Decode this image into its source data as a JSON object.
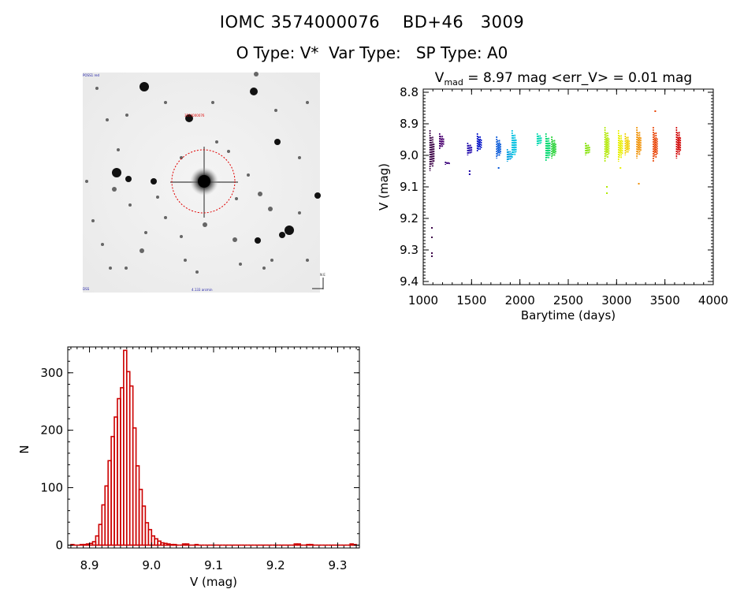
{
  "header": {
    "id_label": "IOMC",
    "iomc_id": "3574000076",
    "star_name": "BD+46   3009",
    "otype_label": "O Type:",
    "otype": "V*",
    "vartype_label": "Var Type:",
    "vartype": "",
    "sptype_label": "SP Type:",
    "sptype": "A0"
  },
  "image_panel": {
    "label_top_left": "POSS1 red",
    "label_target": "3574000076",
    "label_bottom_left": "DSS",
    "label_bottom_mid": "4.133 arcmin",
    "label_compass": "N E"
  },
  "chart_data": [
    {
      "type": "scatter",
      "name": "lightcurve",
      "title_prefix": "V",
      "title_sub": "mad",
      "title_rest": " = 8.97 mag <err_V> = 0.01 mag",
      "xlabel": "Barytime (days)",
      "ylabel": "V (mag)",
      "xlim": [
        1000,
        4000
      ],
      "ylim": [
        9.41,
        8.79
      ],
      "xticks": [
        1000,
        1500,
        2000,
        2500,
        3000,
        3500,
        4000
      ],
      "xtick_labels": [
        "1000",
        "1500",
        "2000",
        "2500",
        "3000",
        "3500",
        "4000"
      ],
      "yticks": [
        8.8,
        8.9,
        9.0,
        9.1,
        9.2,
        9.3,
        9.4
      ],
      "ytick_labels": [
        "8.8",
        "8.9",
        "9.0",
        "9.1",
        "9.2",
        "9.3",
        "9.4"
      ],
      "groups": [
        {
          "x": 1090,
          "y_min": 8.92,
          "y_max": 9.05,
          "color": "#3a0045",
          "outliers": [
            9.23,
            9.26,
            9.31,
            9.32
          ]
        },
        {
          "x": 1190,
          "y_min": 8.93,
          "y_max": 8.98,
          "color": "#4a0070",
          "outliers": []
        },
        {
          "x": 1250,
          "y_min": 9.02,
          "y_max": 9.03,
          "color": "#3a007a",
          "outliers": []
        },
        {
          "x": 1480,
          "y_min": 8.96,
          "y_max": 9.0,
          "color": "#1a00a8",
          "outliers": [
            9.05,
            9.06
          ]
        },
        {
          "x": 1580,
          "y_min": 8.93,
          "y_max": 8.99,
          "color": "#0010c8",
          "outliers": []
        },
        {
          "x": 1780,
          "y_min": 8.94,
          "y_max": 9.01,
          "color": "#0055d8",
          "outliers": [
            9.04
          ]
        },
        {
          "x": 1890,
          "y_min": 8.98,
          "y_max": 9.02,
          "color": "#00a0e0",
          "outliers": []
        },
        {
          "x": 1940,
          "y_min": 8.92,
          "y_max": 9.01,
          "color": "#00c0e0",
          "outliers": []
        },
        {
          "x": 2200,
          "y_min": 8.93,
          "y_max": 8.97,
          "color": "#00d8b0",
          "outliers": []
        },
        {
          "x": 2290,
          "y_min": 8.93,
          "y_max": 9.02,
          "color": "#00d870",
          "outliers": []
        },
        {
          "x": 2350,
          "y_min": 8.94,
          "y_max": 9.01,
          "color": "#20d030",
          "outliers": []
        },
        {
          "x": 2700,
          "y_min": 8.96,
          "y_max": 9.0,
          "color": "#80e000",
          "outliers": []
        },
        {
          "x": 2900,
          "y_min": 8.91,
          "y_max": 9.02,
          "color": "#b0e800",
          "outliers": [
            9.1,
            9.12
          ]
        },
        {
          "x": 3040,
          "y_min": 8.92,
          "y_max": 9.02,
          "color": "#e8f000",
          "outliers": [
            9.04
          ]
        },
        {
          "x": 3110,
          "y_min": 8.93,
          "y_max": 9.0,
          "color": "#f0d000",
          "outliers": []
        },
        {
          "x": 3230,
          "y_min": 8.91,
          "y_max": 9.01,
          "color": "#f09000",
          "outliers": [
            9.09
          ]
        },
        {
          "x": 3400,
          "y_min": 8.91,
          "y_max": 9.02,
          "color": "#e84000",
          "outliers": [
            8.86
          ]
        },
        {
          "x": 3640,
          "y_min": 8.91,
          "y_max": 9.01,
          "color": "#d00000",
          "outliers": []
        }
      ]
    },
    {
      "type": "bar",
      "name": "histogram",
      "xlabel": "V (mag)",
      "ylabel": "N",
      "xlim": [
        8.865,
        9.335
      ],
      "ylim": [
        -5,
        345
      ],
      "xticks": [
        8.9,
        9.0,
        9.1,
        9.2,
        9.3
      ],
      "xtick_labels": [
        "8.9",
        "9.0",
        "9.1",
        "9.2",
        "9.3"
      ],
      "yticks": [
        0,
        100,
        200,
        300
      ],
      "ytick_labels": [
        "0",
        "100",
        "200",
        "300"
      ],
      "bin_start": 8.87,
      "bin_width": 0.005,
      "values": [
        1,
        0,
        0,
        1,
        1,
        2,
        3,
        6,
        16,
        36,
        70,
        103,
        147,
        189,
        223,
        255,
        274,
        339,
        302,
        277,
        204,
        138,
        97,
        68,
        39,
        27,
        16,
        11,
        7,
        4,
        3,
        2,
        1,
        1,
        0,
        0,
        2,
        2,
        0,
        0,
        1,
        0,
        0,
        0,
        0,
        0,
        0,
        0,
        0,
        0,
        0,
        0,
        0,
        0,
        0,
        0,
        0,
        0,
        0,
        0,
        0,
        0,
        0,
        0,
        0,
        0,
        0,
        0,
        0,
        0,
        0,
        0,
        2,
        2,
        0,
        0,
        1,
        1,
        0,
        0,
        0,
        0,
        0,
        0,
        0,
        0,
        0,
        0,
        0,
        0,
        2,
        1
      ],
      "bar_color": "#cc0000"
    }
  ]
}
